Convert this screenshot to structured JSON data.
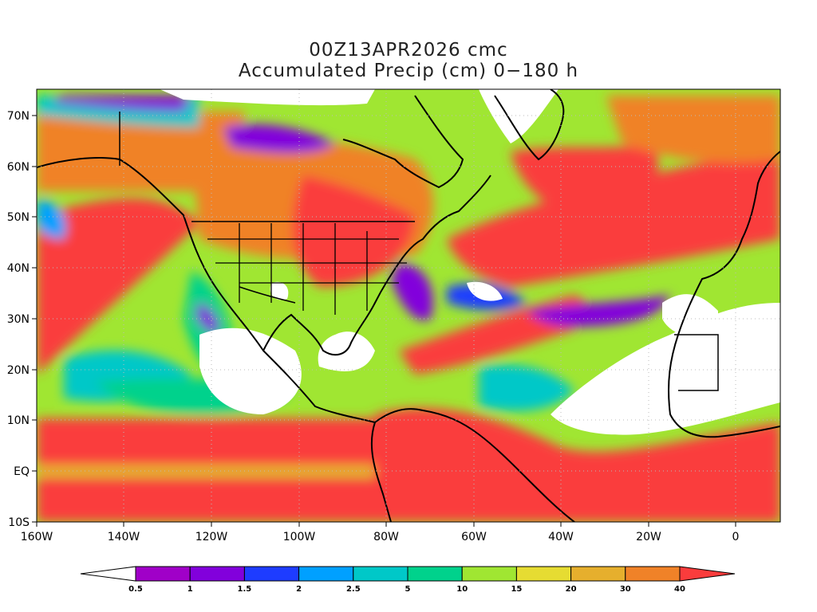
{
  "header": {
    "title_line1": "00Z13APR2026 cmc",
    "title_line2": "Accumulated Precip (cm) 0−180 h"
  },
  "axes": {
    "lon_labels": [
      "160W",
      "140W",
      "120W",
      "100W",
      "80W",
      "60W",
      "40W",
      "20W",
      "0"
    ],
    "lat_labels": [
      "70N",
      "60N",
      "50N",
      "40N",
      "30N",
      "20N",
      "10N",
      "EQ",
      "10S"
    ]
  },
  "colorbar": {
    "levels": [
      "0.5",
      "1",
      "1.5",
      "2",
      "2.5",
      "5",
      "10",
      "15",
      "20",
      "30",
      "40"
    ],
    "colors": [
      "#ffffff",
      "#a000c8",
      "#8200dc",
      "#1e3cff",
      "#00a0ff",
      "#00c8c8",
      "#00d28c",
      "#a0e632",
      "#e6dc32",
      "#e6af2d",
      "#f08228",
      "#fa3c3c"
    ]
  }
}
